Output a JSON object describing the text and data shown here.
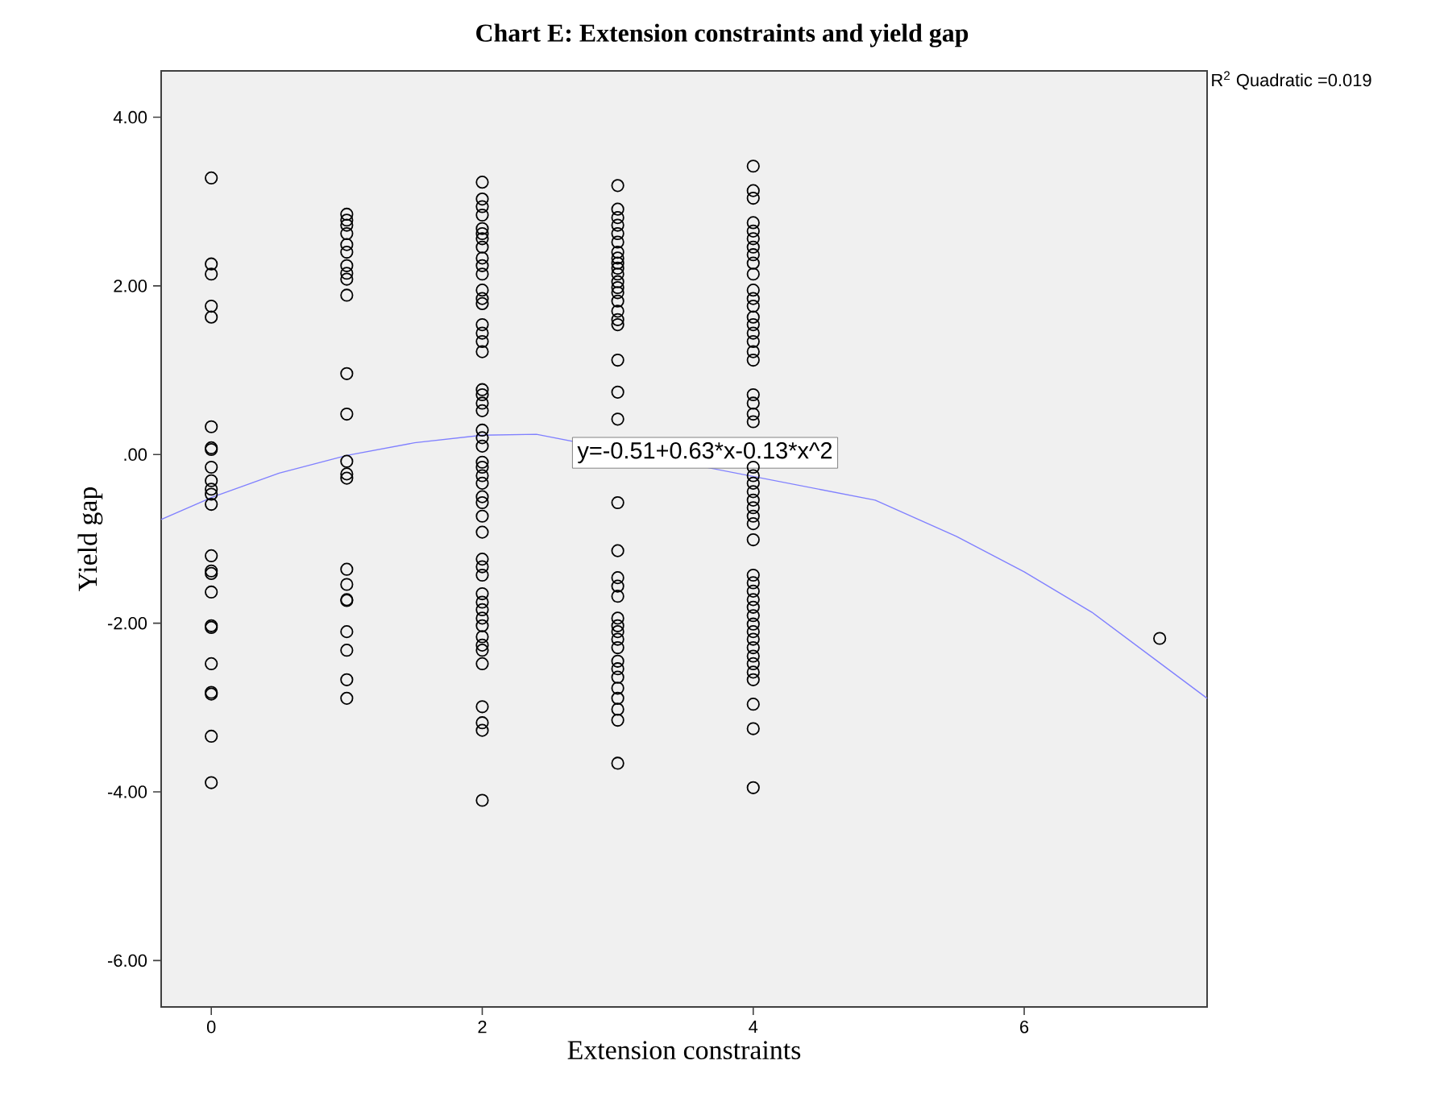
{
  "chart_data": {
    "type": "scatter",
    "title": "Chart E: Extension constraints and yield gap",
    "xlabel": "Extension constraints",
    "ylabel": "Yield gap",
    "xlim": [
      -0.37,
      7.35
    ],
    "ylim": [
      -6.55,
      4.55
    ],
    "xticks": [
      0,
      2,
      4,
      6
    ],
    "yticks": [
      {
        "value": 4,
        "label": "4.00"
      },
      {
        "value": 2,
        "label": "2.00"
      },
      {
        "value": 0,
        "label": ".00"
      },
      {
        "value": -2,
        "label": "-2.00"
      },
      {
        "value": -4,
        "label": "-4.00"
      },
      {
        "value": -6,
        "label": "-6.00"
      }
    ],
    "grid": false,
    "series": [
      {
        "color": "#000000",
        "marker": "circle",
        "x": [
          0,
          0,
          0,
          0,
          0,
          0,
          0,
          0,
          0,
          0,
          0,
          0,
          0,
          0,
          0,
          0,
          0,
          0,
          0,
          0,
          0,
          0,
          0,
          0,
          1,
          1,
          1,
          1,
          1,
          1,
          1,
          1,
          1,
          1,
          1,
          1,
          1,
          1,
          1,
          1,
          1,
          1,
          1,
          1,
          1,
          1,
          1,
          2,
          2,
          2,
          2,
          2,
          2,
          2,
          2,
          2,
          2,
          2,
          2,
          2,
          2,
          2,
          2,
          2,
          2,
          2,
          2,
          2,
          2,
          2,
          2,
          2,
          2,
          2,
          2,
          2,
          2,
          2,
          2,
          2,
          2,
          2,
          2,
          2,
          2,
          2,
          2,
          2,
          2,
          2,
          2,
          2,
          2,
          2,
          2,
          2,
          3,
          3,
          3,
          3,
          3,
          3,
          3,
          3,
          3,
          3,
          3,
          3,
          3,
          3,
          3,
          3,
          3,
          3,
          3,
          3,
          3,
          3,
          3,
          3,
          3,
          3,
          3,
          3,
          3,
          3,
          3,
          3,
          3,
          3,
          3,
          3,
          3,
          3,
          3,
          4,
          4,
          4,
          4,
          4,
          4,
          4,
          4,
          4,
          4,
          4,
          4,
          4,
          4,
          4,
          4,
          4,
          4,
          4,
          4,
          4,
          4,
          4,
          4,
          4,
          4,
          4,
          4,
          4,
          4,
          4,
          4,
          4,
          4,
          4,
          4,
          4,
          4,
          4,
          4,
          4,
          4,
          4,
          4,
          4,
          4,
          4,
          4,
          4,
          7
        ],
        "values": [
          3.28,
          2.26,
          2.14,
          1.76,
          1.63,
          0.33,
          0.08,
          0.06,
          -0.15,
          -0.31,
          -0.41,
          -0.47,
          -0.59,
          -1.2,
          -1.38,
          -1.41,
          -1.63,
          -2.03,
          -2.05,
          -2.48,
          -2.82,
          -2.84,
          -3.34,
          -3.89,
          2.85,
          2.78,
          2.72,
          2.62,
          2.49,
          2.4,
          2.24,
          2.15,
          2.08,
          1.89,
          0.96,
          0.48,
          -0.08,
          -0.23,
          -0.28,
          -1.36,
          -1.54,
          -1.72,
          -1.73,
          -2.1,
          -2.32,
          -2.67,
          -2.89,
          3.23,
          3.03,
          2.94,
          2.84,
          2.68,
          2.62,
          2.56,
          2.46,
          2.33,
          2.24,
          2.14,
          1.95,
          1.85,
          1.79,
          1.54,
          1.44,
          1.34,
          1.22,
          0.77,
          0.71,
          0.61,
          0.52,
          0.29,
          0.2,
          0.1,
          -0.09,
          -0.15,
          -0.25,
          -0.34,
          -0.5,
          -0.57,
          -0.73,
          -0.92,
          -1.24,
          -1.33,
          -1.43,
          -1.65,
          -1.75,
          -1.84,
          -1.94,
          -2.03,
          -2.16,
          -2.26,
          -2.32,
          -2.48,
          -2.99,
          -3.18,
          -3.27,
          -4.1,
          3.19,
          2.91,
          2.81,
          2.72,
          2.62,
          2.52,
          2.4,
          2.33,
          2.27,
          2.21,
          2.14,
          2.05,
          1.98,
          1.92,
          1.82,
          1.7,
          1.6,
          1.54,
          1.12,
          0.74,
          0.42,
          -0.57,
          -1.14,
          -1.46,
          -1.56,
          -1.68,
          -1.94,
          -2.03,
          -2.1,
          -2.19,
          -2.29,
          -2.45,
          -2.54,
          -2.64,
          -2.77,
          -2.89,
          -3.02,
          -3.15,
          -3.66,
          3.42,
          3.13,
          3.04,
          2.75,
          2.65,
          2.56,
          2.46,
          2.37,
          2.27,
          2.14,
          1.95,
          1.85,
          1.76,
          1.63,
          1.54,
          1.44,
          1.34,
          1.22,
          1.12,
          0.71,
          0.61,
          0.48,
          0.39,
          -0.15,
          -0.25,
          -0.34,
          -0.44,
          -0.54,
          -0.63,
          -0.73,
          -0.82,
          -1.01,
          -1.43,
          -1.52,
          -1.62,
          -1.72,
          -1.81,
          -1.91,
          -2.01,
          -2.1,
          -2.19,
          -2.29,
          -2.39,
          -2.48,
          -2.58,
          -2.67,
          -2.96,
          -3.25,
          -3.95,
          -2.18
        ]
      },
      {
        "type": "line",
        "color": "#8080ff",
        "marker": "none",
        "x": [
          -0.37,
          0,
          0.5,
          1,
          1.5,
          2,
          2.4,
          4.9,
          5.5,
          6,
          6.5,
          7,
          7.35
        ],
        "values": [
          -0.77,
          -0.51,
          -0.22,
          -0.01,
          0.14,
          0.23,
          0.24,
          -0.54,
          -0.97,
          -1.39,
          -1.87,
          -2.47,
          -2.89
        ]
      }
    ],
    "annotations": [
      "y=-0.51+0.63*x-0.13*x^2",
      "R$^{2}$ Quadratic =0.019"
    ]
  }
}
